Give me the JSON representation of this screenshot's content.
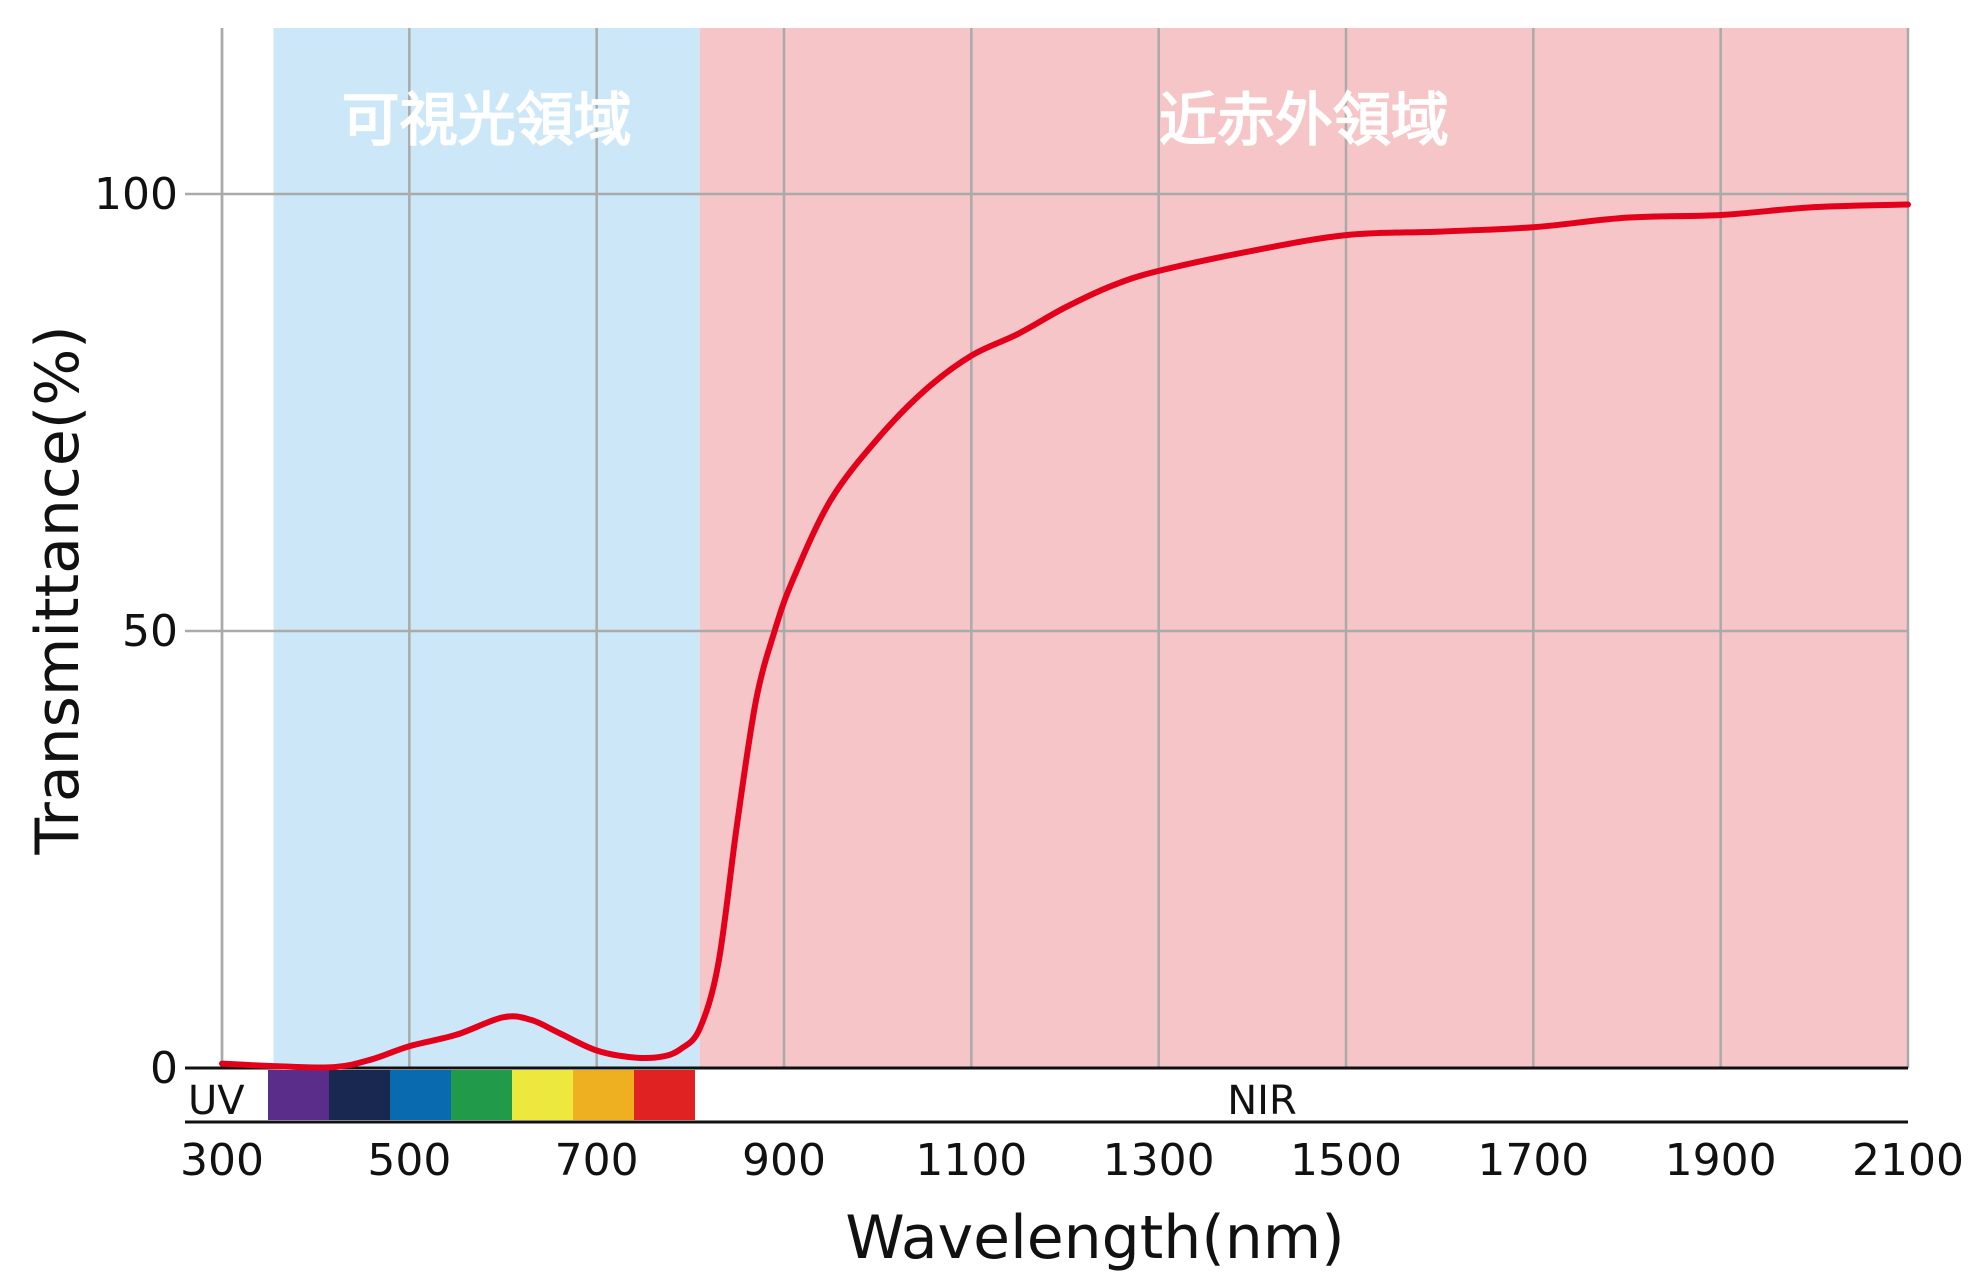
{
  "chart_data": {
    "type": "line",
    "xlabel": "Wavelength(nm)",
    "ylabel": "Transmittance(%)",
    "xlim": [
      300,
      2100
    ],
    "ylim": [
      0,
      100
    ],
    "x_ticks": [
      "300",
      "500",
      "700",
      "900",
      "1100",
      "1300",
      "1500",
      "1700",
      "1900",
      "2100"
    ],
    "y_ticks": [
      "0",
      "50",
      "100"
    ],
    "grid": true,
    "regions": [
      {
        "label": "可視光領域",
        "from": 355,
        "to": 810,
        "color": "#cce7f8"
      },
      {
        "label": "近赤外領域",
        "from": 810,
        "to": 2100,
        "color": "#f6c5c7"
      }
    ],
    "spectrum_band": {
      "uv_label": "UV",
      "nir_label": "NIR",
      "colors": [
        "#5a2d8a",
        "#182850",
        "#0a6ab0",
        "#219a4a",
        "#ece83e",
        "#eeb021",
        "#e02222"
      ]
    },
    "series": [
      {
        "color": "#e3001b",
        "x": [
          300,
          360,
          420,
          460,
          500,
          550,
          600,
          630,
          660,
          700,
          740,
          770,
          790,
          810,
          830,
          850,
          870,
          890,
          910,
          950,
          1000,
          1050,
          1100,
          1150,
          1200,
          1250,
          1300,
          1400,
          1500,
          1600,
          1700,
          1800,
          1900,
          2000,
          2100
        ],
        "y": [
          0.5,
          0.2,
          0.1,
          1.0,
          2.5,
          3.8,
          5.8,
          5.5,
          4.0,
          2.0,
          1.2,
          1.3,
          2.2,
          4.5,
          12,
          28,
          42,
          50,
          56,
          65,
          72,
          77.5,
          81.5,
          84,
          87,
          89.5,
          91.2,
          93.5,
          95.3,
          95.7,
          96.2,
          97.3,
          97.6,
          98.5,
          98.8
        ]
      }
    ]
  }
}
